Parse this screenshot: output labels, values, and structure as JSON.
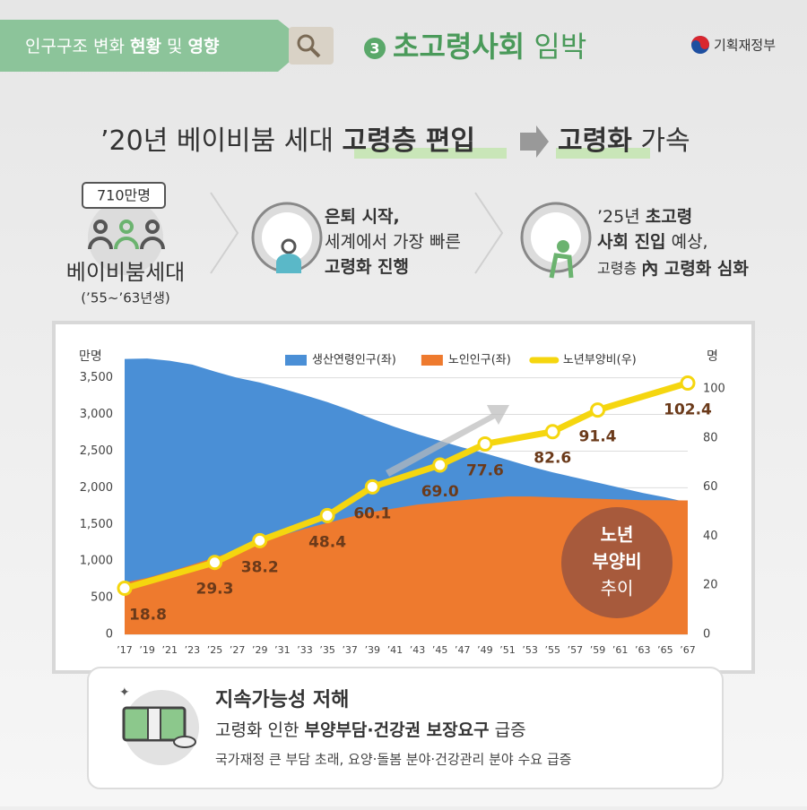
{
  "header": {
    "tab": [
      "인구구조 변화 ",
      "현황",
      " 및 ",
      "영향"
    ],
    "number": "3",
    "title": [
      "초고령사회",
      " 임박"
    ],
    "ministry": "기획재정부"
  },
  "headline": {
    "left": [
      "’20년 베이비붐 세대 ",
      "고령층 편입"
    ],
    "right": [
      "고령화",
      " 가속"
    ]
  },
  "steps": [
    {
      "badge": "710만명",
      "title": "베이비붐세대",
      "note": "(’55~’63년생)"
    },
    {
      "lines": [
        [
          "은퇴 시작,"
        ],
        [
          "세계에서 가장 빠른"
        ],
        [
          "고령화 진행"
        ]
      ]
    },
    {
      "lines": [
        [
          "’25년 ",
          "초고령"
        ],
        [
          "사회 진입",
          " 예상,"
        ],
        [
          "고령층 ",
          "內 고령화 심화"
        ]
      ]
    }
  ],
  "chart_data": {
    "type": "area",
    "y_unit": "만명",
    "y2_unit": "명",
    "x": [
      17,
      19,
      21,
      23,
      25,
      27,
      29,
      31,
      33,
      35,
      37,
      39,
      41,
      43,
      45,
      47,
      49,
      51,
      53,
      55,
      57,
      59,
      61,
      63,
      65,
      67
    ],
    "xlim": [
      17,
      67
    ],
    "xticks": [
      {
        "value": 17,
        "label": "’17"
      },
      {
        "value": 19,
        "label": "’19"
      },
      {
        "value": 21,
        "label": "’21"
      },
      {
        "value": 23,
        "label": "’23"
      },
      {
        "value": 25,
        "label": "’25"
      },
      {
        "value": 27,
        "label": "’27"
      },
      {
        "value": 29,
        "label": "’29"
      },
      {
        "value": 31,
        "label": "’31"
      },
      {
        "value": 33,
        "label": "’33"
      },
      {
        "value": 35,
        "label": "’35"
      },
      {
        "value": 37,
        "label": "’37"
      },
      {
        "value": 39,
        "label": "’39"
      },
      {
        "value": 41,
        "label": "’41"
      },
      {
        "value": 43,
        "label": "’43"
      },
      {
        "value": 45,
        "label": "’45"
      },
      {
        "value": 47,
        "label": "’47"
      },
      {
        "value": 49,
        "label": "’49"
      },
      {
        "value": 51,
        "label": "’51"
      },
      {
        "value": 53,
        "label": "’53"
      },
      {
        "value": 55,
        "label": "’55"
      },
      {
        "value": 57,
        "label": "’57"
      },
      {
        "value": 59,
        "label": "’59"
      },
      {
        "value": 61,
        "label": "’61"
      },
      {
        "value": 63,
        "label": "’63"
      },
      {
        "value": 65,
        "label": "’65"
      },
      {
        "value": 67,
        "label": "’67"
      }
    ],
    "ylim": [
      0,
      3850
    ],
    "yticks": [
      0,
      500,
      {
        "value": 1000,
        "label": "1,000"
      },
      {
        "value": 1500,
        "label": "1,500"
      },
      {
        "value": 2000,
        "label": "2,000"
      },
      {
        "value": 2500,
        "label": "2,500"
      },
      {
        "value": 3000,
        "label": "3,000"
      },
      {
        "value": 3500,
        "label": "3,500"
      }
    ],
    "y2lim": [
      0,
      115
    ],
    "y2ticks": [
      0,
      20,
      40,
      60,
      80,
      100
    ],
    "series": [
      {
        "name": "생산연령인구(좌)",
        "type": "area",
        "color": "#4a8fd6",
        "values": [
          3757,
          3763,
          3732,
          3680,
          3585,
          3500,
          3436,
          3352,
          3264,
          3168,
          3060,
          2940,
          2830,
          2730,
          2640,
          2550,
          2470,
          2380,
          2290,
          2210,
          2140,
          2070,
          2000,
          1930,
          1870,
          1800
        ]
      },
      {
        "name": "노인인구(좌)",
        "type": "area",
        "color": "#ee7a2e",
        "values": [
          707,
          770,
          855,
          950,
          1050,
          1150,
          1250,
          1350,
          1440,
          1520,
          1600,
          1670,
          1720,
          1770,
          1800,
          1830,
          1860,
          1880,
          1880,
          1870,
          1860,
          1850,
          1840,
          1830,
          1830,
          1827
        ]
      },
      {
        "name": "노년부양비(우)",
        "type": "line",
        "axis": "y2",
        "color": "#f5d60f",
        "x": [
          17,
          25,
          29,
          35,
          39,
          45,
          49,
          55,
          59,
          67
        ],
        "values": [
          18.8,
          29.3,
          38.2,
          48.4,
          60.1,
          69.0,
          77.6,
          82.6,
          91.4,
          102.4
        ],
        "value_labels": [
          "18.8",
          "29.3",
          "38.2",
          "48.4",
          "60.1",
          "69.0",
          "77.6",
          "82.6",
          "91.4",
          "102.4"
        ]
      }
    ],
    "badge": [
      "노년",
      "부양비",
      "추이"
    ]
  },
  "footer": {
    "title": "지속가능성 저해",
    "line1": [
      "고령화 인한 ",
      "부양부담·건강권 보장요구",
      " 급증"
    ],
    "line2": "국가재정 큰 부담 초래, 요양·돌봄 분야·건강관리 분야 수요 급증"
  }
}
